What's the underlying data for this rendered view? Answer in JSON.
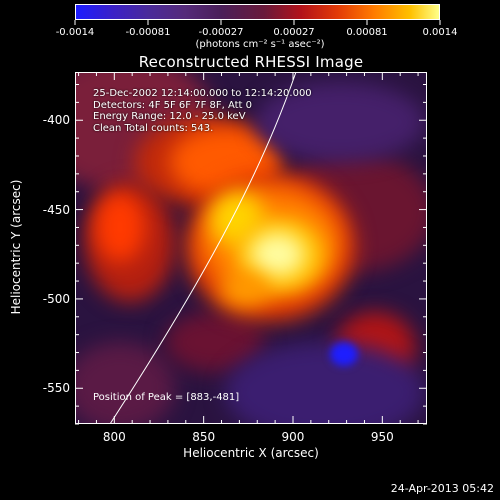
{
  "colorbar": {
    "tick_labels": [
      "-0.0014",
      "-0.00081",
      "-0.00027",
      "0.00027",
      "0.00081",
      "0.0014"
    ],
    "units": "(photons cm⁻² s⁻¹ asec⁻²)",
    "range": [
      -0.0014,
      0.0014
    ]
  },
  "title": "Reconstructed RHESSI Image",
  "annotations": {
    "time": "25-Dec-2002 12:14:00.000 to 12:14:20.000",
    "detectors": "Detectors: 4F 5F 6F 7F 8F, Att 0",
    "energy": "Energy Range: 12.0 - 25.0 keV",
    "method": "Clean     Total counts: 543.",
    "peak": "Position of Peak = [883,-481]"
  },
  "axes": {
    "x_label": "Heliocentric X (arcsec)",
    "y_label": "Heliocentric Y (arcsec)",
    "x_ticks": [
      "800",
      "850",
      "900",
      "950"
    ],
    "y_ticks": [
      "-400",
      "-450",
      "-500",
      "-550"
    ],
    "x_range": [
      778,
      975
    ],
    "y_range": [
      -570,
      -373
    ]
  },
  "timestamp": "24-Apr-2013 05:42",
  "colors": {
    "background": "#000000",
    "foreground": "#ffffff",
    "hot_peak": "#ffffa0",
    "negative_blue": "#2020ff"
  }
}
